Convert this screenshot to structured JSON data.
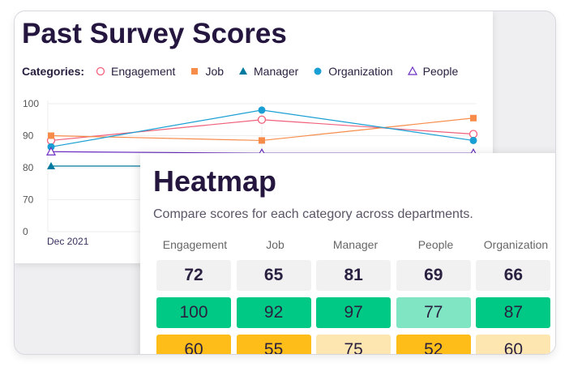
{
  "survey": {
    "title": "Past Survey Scores",
    "legend_label": "Categories:",
    "legend": [
      {
        "name": "Engagement",
        "color": "#f0607a",
        "marker": "open-circle"
      },
      {
        "name": "Job",
        "color": "#f78c4a",
        "marker": "square"
      },
      {
        "name": "Manager",
        "color": "#007a9e",
        "marker": "triangle"
      },
      {
        "name": "Organization",
        "color": "#1a9fd4",
        "marker": "circle"
      },
      {
        "name": "People",
        "color": "#6a2fc0",
        "marker": "open-triangle"
      }
    ]
  },
  "chart_data": {
    "type": "line",
    "x": [
      "Dec 2021",
      "",
      ""
    ],
    "y_ticks": [
      100,
      90,
      80,
      70,
      0
    ],
    "series": [
      {
        "name": "Engagement",
        "values": [
          88.5,
          95,
          90.5
        ]
      },
      {
        "name": "Job",
        "values": [
          90,
          88.5,
          95.5
        ]
      },
      {
        "name": "Manager",
        "values": [
          80.5,
          80.5,
          80.5
        ]
      },
      {
        "name": "Organization",
        "values": [
          86.5,
          98,
          88.5
        ]
      },
      {
        "name": "People",
        "values": [
          85,
          84.5,
          84.5
        ]
      }
    ]
  },
  "heatmap": {
    "title": "Heatmap",
    "subtitle": "Compare scores for each category across departments.",
    "columns": [
      "Engagement",
      "Job",
      "Manager",
      "People",
      "Organization"
    ],
    "rows": [
      [
        {
          "v": "72",
          "c": "#f1f1f2",
          "b": true
        },
        {
          "v": "65",
          "c": "#f1f1f2",
          "b": true
        },
        {
          "v": "81",
          "c": "#f1f1f2",
          "b": true
        },
        {
          "v": "69",
          "c": "#f1f1f2",
          "b": true
        },
        {
          "v": "66",
          "c": "#f1f1f2",
          "b": true
        }
      ],
      [
        {
          "v": "100",
          "c": "#00c985"
        },
        {
          "v": "92",
          "c": "#00c985"
        },
        {
          "v": "97",
          "c": "#00c985"
        },
        {
          "v": "77",
          "c": "#80e5c2"
        },
        {
          "v": "87",
          "c": "#00c985"
        }
      ],
      [
        {
          "v": "60",
          "c": "#ffbd1a"
        },
        {
          "v": "55",
          "c": "#ffbd1a"
        },
        {
          "v": "75",
          "c": "#fde6b0"
        },
        {
          "v": "52",
          "c": "#ffbd1a"
        },
        {
          "v": "60",
          "c": "#fde6b0"
        }
      ]
    ]
  }
}
